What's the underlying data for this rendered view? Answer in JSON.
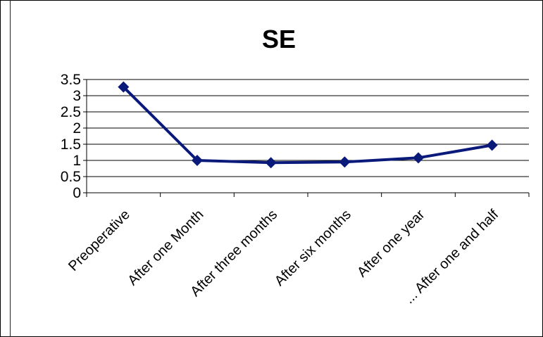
{
  "chart_data": {
    "type": "line",
    "title": "SE",
    "xlabel": "",
    "ylabel": "",
    "categories": [
      "Preoperative",
      "After one Month",
      "After three months",
      "After six months",
      "After one year",
      "... After one and half"
    ],
    "series": [
      {
        "values": [
          3.27,
          1.0,
          0.93,
          0.95,
          1.08,
          1.47
        ]
      }
    ],
    "ylim": [
      0,
      3.5
    ],
    "yticks": [
      "0",
      "0.5",
      "1",
      "1.5",
      "2",
      "2.5",
      "3",
      "3.5"
    ],
    "grid": true,
    "legend": "none",
    "colors": {
      "series": "#0a1a7a",
      "grid": "#000000"
    }
  }
}
